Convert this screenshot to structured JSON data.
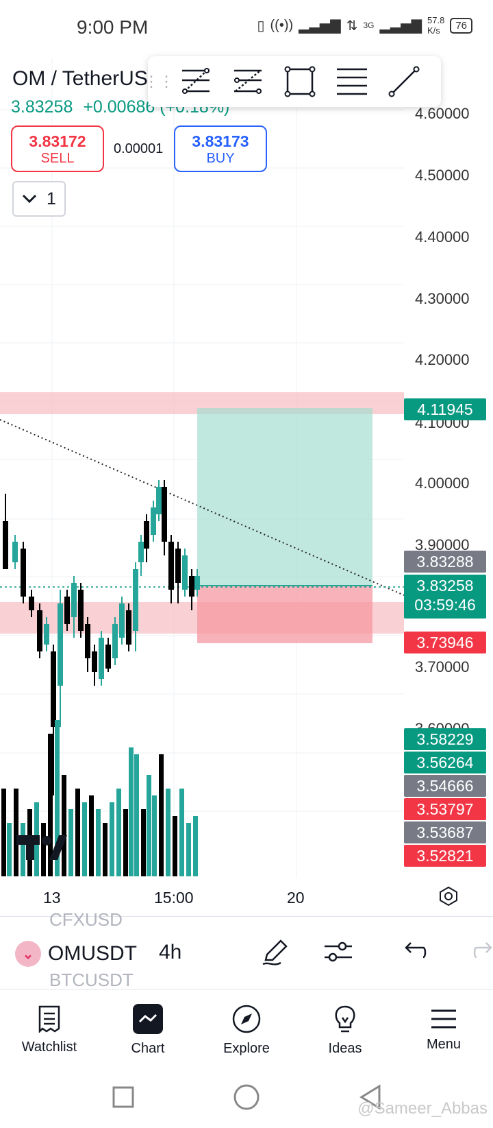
{
  "status_bar": {
    "time": "9:00 PM",
    "network": "3G",
    "speed_value": "57.8",
    "speed_unit": "K/s",
    "battery": "76"
  },
  "header": {
    "symbol_title": "OM / TetherUS",
    "last_price": "3.83258",
    "change": "+0.00686 (+0.18%)",
    "sell_price": "3.83172",
    "sell_label": "SELL",
    "buy_price": "3.83173",
    "buy_label": "BUY",
    "spread": "0.00001",
    "interval_count": "1"
  },
  "drawing_toolbar": {
    "tools": [
      "fib-retracement-icon",
      "parallel-channel-icon",
      "rectangle-icon",
      "horizontal-lines-icon",
      "trend-line-icon"
    ]
  },
  "price_axis": {
    "labels": [
      "4.60000",
      "4.50000",
      "4.40000",
      "4.30000",
      "4.20000",
      "4.10000",
      "4.00000",
      "3.90000",
      "3.70000",
      "3.60000"
    ]
  },
  "price_tags": [
    {
      "value": "4.11945",
      "color": "#089981"
    },
    {
      "value": "3.83288",
      "color": "#787b86"
    },
    {
      "value": "3.83258",
      "color": "#089981",
      "sub": "03:59:46"
    },
    {
      "value": "3.73946",
      "color": "#f23645"
    },
    {
      "value": "3.58229",
      "color": "#089981"
    },
    {
      "value": "3.56264",
      "color": "#089981"
    },
    {
      "value": "3.54666",
      "color": "#787b86"
    },
    {
      "value": "3.53797",
      "color": "#f23645"
    },
    {
      "value": "3.53687",
      "color": "#787b86"
    },
    {
      "value": "3.52821",
      "color": "#f23645"
    }
  ],
  "time_axis": {
    "labels": [
      "13",
      "15:00",
      "20"
    ]
  },
  "colors": {
    "up": "#26a69a",
    "down": "#000000",
    "accent": "#089981",
    "sell": "#f23645",
    "buy": "#2962ff"
  },
  "chart_toolbar": {
    "symbol": "OMUSDT",
    "timeframe": "4h",
    "prev_symbol": "CFXUSD",
    "next_symbol": "BTCUSDT"
  },
  "bottom_nav": {
    "items": [
      {
        "label": "Watchlist",
        "icon": "watchlist-icon"
      },
      {
        "label": "Chart",
        "icon": "chart-icon"
      },
      {
        "label": "Explore",
        "icon": "compass-icon"
      },
      {
        "label": "Ideas",
        "icon": "lightbulb-icon"
      },
      {
        "label": "Menu",
        "icon": "menu-icon"
      }
    ]
  },
  "watermark": "@Sameer_Abbas"
}
